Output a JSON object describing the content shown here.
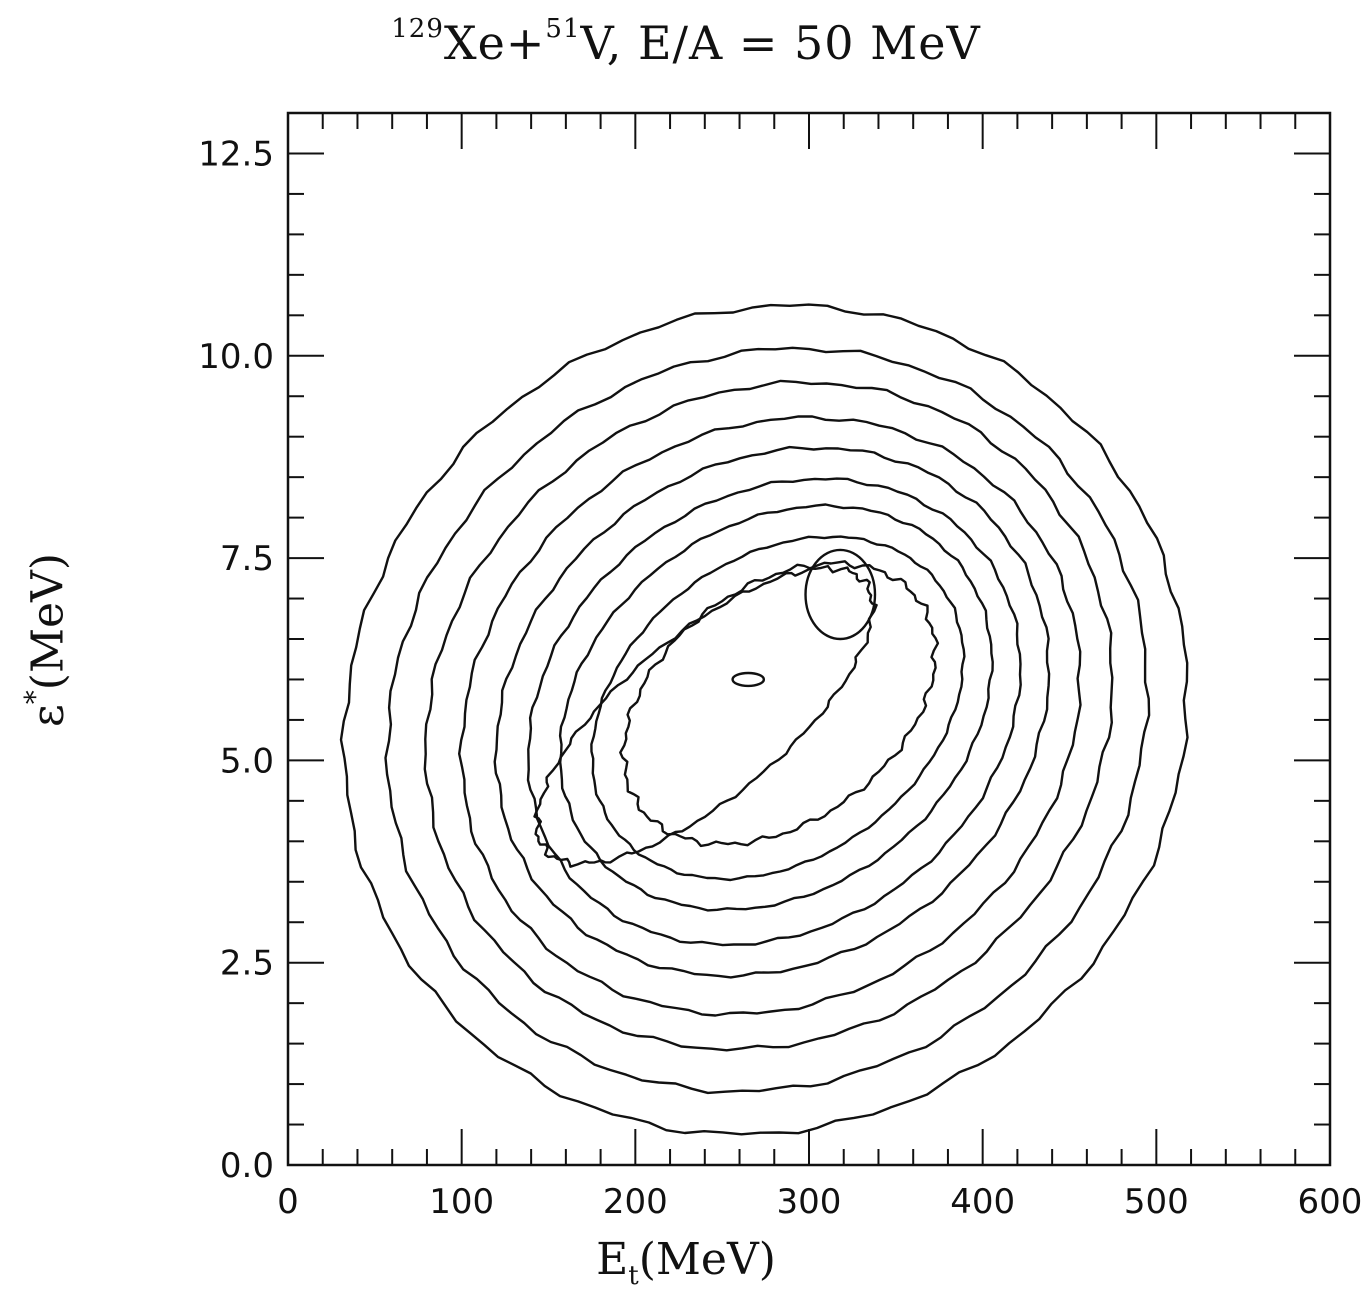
{
  "chart_data": {
    "type": "contour",
    "title_parts": {
      "a_mass": "129",
      "a_sym": "Xe+",
      "b_mass": "51",
      "b_sym": "V, E/A = 50 MeV"
    },
    "xlabel_parts": {
      "sym": "E",
      "sub": "t",
      "unit": "(MeV)"
    },
    "ylabel_parts": {
      "sym": "ε",
      "sup": "*",
      "unit": "(MeV)"
    },
    "xlim": [
      0,
      600
    ],
    "ylim": [
      0,
      13
    ],
    "x_ticks": [
      0,
      100,
      200,
      300,
      400,
      500,
      600
    ],
    "y_ticks": [
      0.0,
      2.5,
      5.0,
      7.5,
      10.0,
      12.5
    ],
    "x_tick_labels": [
      "0",
      "100",
      "200",
      "300",
      "400",
      "500",
      "600"
    ],
    "y_tick_labels": [
      "0.0",
      "2.5",
      "5.0",
      "7.5",
      "10.0",
      "12.5"
    ],
    "grid": false,
    "legend": "none",
    "contours": [
      {
        "level": 1,
        "cx": 275,
        "cy": 5.5,
        "rx": 248,
        "ry": 5.0,
        "angle_deg": 37
      },
      {
        "level": 2,
        "cx": 276,
        "cy": 5.5,
        "rx": 225,
        "ry": 4.45,
        "angle_deg": 37
      },
      {
        "level": 3,
        "cx": 277,
        "cy": 5.55,
        "rx": 205,
        "ry": 3.95,
        "angle_deg": 37
      },
      {
        "level": 4,
        "cx": 278,
        "cy": 5.55,
        "rx": 186,
        "ry": 3.5,
        "angle_deg": 37
      },
      {
        "level": 5,
        "cx": 279,
        "cy": 5.6,
        "rx": 168,
        "ry": 3.05,
        "angle_deg": 37
      },
      {
        "level": 6,
        "cx": 280,
        "cy": 5.6,
        "rx": 151,
        "ry": 2.65,
        "angle_deg": 37
      },
      {
        "level": 7,
        "cx": 281,
        "cy": 5.65,
        "rx": 134,
        "ry": 2.25,
        "angle_deg": 37
      },
      {
        "level": 8,
        "cx": 282,
        "cy": 5.65,
        "rx": 117,
        "ry": 1.85,
        "angle_deg": 37
      },
      {
        "level": 9,
        "cx": 283,
        "cy": 5.7,
        "rx": 100,
        "ry": 1.45,
        "angle_deg": 37
      },
      {
        "level": 10,
        "cx": 240,
        "cy": 5.55,
        "rx": 120,
        "ry": 1.0,
        "angle_deg": 40
      }
    ],
    "islands": [
      {
        "cx": 318,
        "cy": 7.05,
        "rx": 20,
        "ry": 0.55
      },
      {
        "cx": 265,
        "cy": 6.0,
        "rx": 9,
        "ry": 0.08
      }
    ]
  }
}
